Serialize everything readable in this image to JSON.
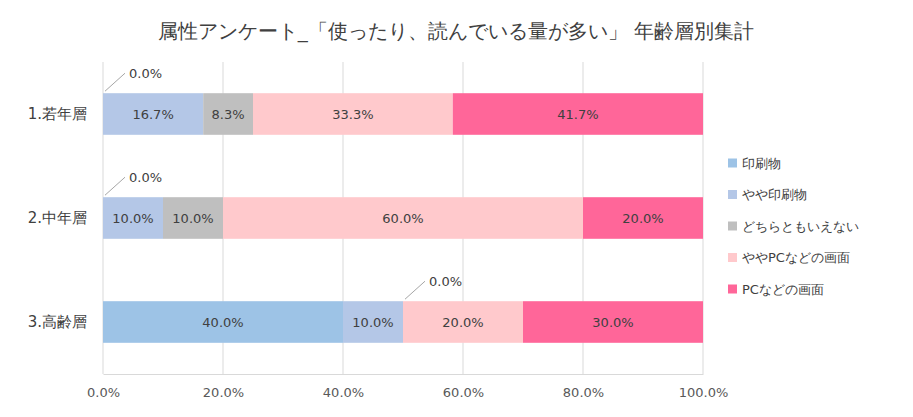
{
  "chart_data": {
    "type": "bar",
    "title": "属性アンケート_「使ったり、読んでいる量が多い」 年齢層別集計",
    "orientation": "horizontal",
    "stacked": true,
    "data_labels": true,
    "grid": true,
    "legend": "right",
    "categories": [
      "1.若年層",
      "2.中年層",
      "3.高齢層"
    ],
    "series": [
      {
        "name": "印刷物",
        "color": "#9dc3e6",
        "values": [
          0,
          0,
          40
        ],
        "value_labels": [
          "0.0%",
          "0.0%",
          "40.0%"
        ]
      },
      {
        "name": "やや印刷物",
        "color": "#b4c7e7",
        "values": [
          16.7,
          10,
          10
        ],
        "value_labels": [
          "16.7%",
          "10.0%",
          "10.0%"
        ]
      },
      {
        "name": "どちらともいえない",
        "color": "#bfbfbf",
        "values": [
          8.3,
          10,
          0
        ],
        "value_labels": [
          "8.3%",
          "10.0%",
          "0.0%"
        ]
      },
      {
        "name": "ややPCなどの画面",
        "color": "#ffc9cc",
        "values": [
          33.3,
          60,
          20
        ],
        "value_labels": [
          "33.3%",
          "60.0%",
          "20.0%"
        ]
      },
      {
        "name": "PCなどの画面",
        "color": "#ff6699",
        "values": [
          41.7,
          20,
          30
        ],
        "value_labels": [
          "41.7%",
          "20.0%",
          "30.0%"
        ]
      }
    ],
    "xlim": [
      0,
      100
    ],
    "xticks": [
      {
        "value": 0,
        "label": "0.0%"
      },
      {
        "value": 20,
        "label": "20.0%"
      },
      {
        "value": 40,
        "label": "40.0%"
      },
      {
        "value": 60,
        "label": "60.0%"
      },
      {
        "value": 80,
        "label": "80.0%"
      },
      {
        "value": 100,
        "label": "100.0%"
      }
    ]
  }
}
